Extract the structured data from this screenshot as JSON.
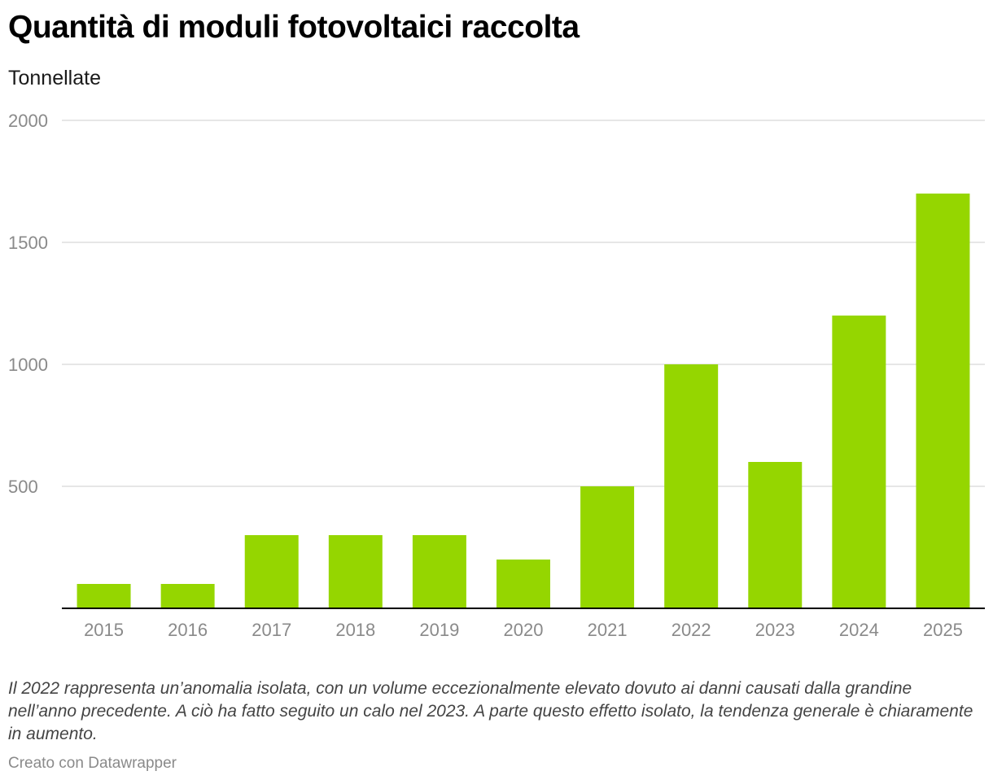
{
  "title": "Quantità di moduli fotovoltaici raccolta",
  "subtitle": "Tonnellate",
  "note": "Il 2022 rappresenta un’anomalia isolata, con un volume eccezionalmente elevato dovuto ai danni causati dalla grandine nell’anno precedente. A ciò ha fatto seguito un calo nel 2023. A parte questo effetto isolato, la tendenza generale è chiaramente in aumento.",
  "credit": "Creato con Datawrapper",
  "colors": {
    "bar": "#95d600",
    "grid": "#dddddd",
    "axis": "#000000"
  },
  "chart_data": {
    "type": "bar",
    "title": "Quantità di moduli fotovoltaici raccolta",
    "subtitle": "Tonnellate",
    "categories": [
      "2015",
      "2016",
      "2017",
      "2018",
      "2019",
      "2020",
      "2021",
      "2022",
      "2023",
      "2024",
      "2025"
    ],
    "values": [
      100,
      100,
      300,
      300,
      300,
      200,
      500,
      1000,
      600,
      1200,
      1700
    ],
    "ylim": [
      0,
      2000
    ],
    "yticks": [
      500,
      1000,
      1500,
      2000
    ],
    "grid": true,
    "legend": "none"
  }
}
